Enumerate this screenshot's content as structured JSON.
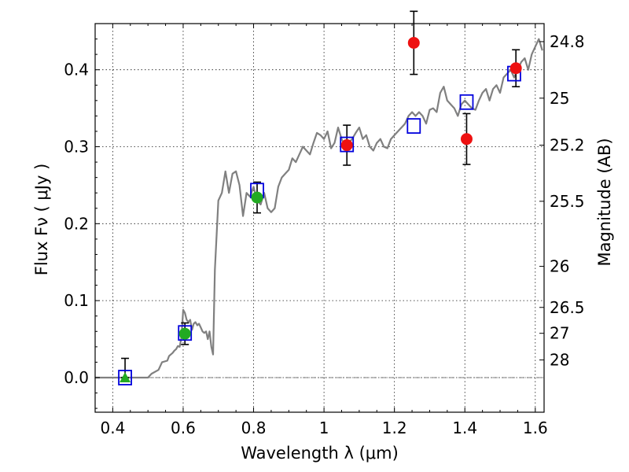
{
  "chart_data": {
    "type": "scatter",
    "xlabel": "Wavelength  λ (μm)",
    "ylabel": "Flux  Fν  ( μJy )",
    "y2label": "Magnitude (AB)",
    "xlim": [
      0.35,
      1.625
    ],
    "ylim": [
      -0.045,
      0.46
    ],
    "x_ticks": [
      0.4,
      0.6,
      0.8,
      1.0,
      1.2,
      1.4,
      1.6
    ],
    "x_tick_labels": [
      "0.4",
      "0.6",
      "0.8",
      "1",
      "1.2",
      "1.4",
      "1.6"
    ],
    "y_ticks": [
      0.0,
      0.1,
      0.2,
      0.3,
      0.4
    ],
    "y_tick_labels": [
      "0.0",
      "0.1",
      "0.2",
      "0.3",
      "0.4"
    ],
    "y2_tick_labels": [
      "24.8",
      "25",
      "25.2",
      "25.5",
      "26",
      "26.5",
      "27",
      "28"
    ],
    "grid": true,
    "zero_line": true,
    "series": [
      {
        "kind": "line",
        "color": "#808080",
        "x": [
          0.35,
          0.45,
          0.5,
          0.51,
          0.53,
          0.54,
          0.555,
          0.56,
          0.565,
          0.57,
          0.575,
          0.58,
          0.585,
          0.59,
          0.595,
          0.6,
          0.605,
          0.61,
          0.615,
          0.62,
          0.625,
          0.63,
          0.635,
          0.64,
          0.645,
          0.65,
          0.655,
          0.66,
          0.665,
          0.67,
          0.675,
          0.68,
          0.685,
          0.69,
          0.7,
          0.71,
          0.72,
          0.73,
          0.74,
          0.75,
          0.76,
          0.77,
          0.78,
          0.79,
          0.8,
          0.81,
          0.82,
          0.83,
          0.84,
          0.85,
          0.86,
          0.87,
          0.88,
          0.89,
          0.9,
          0.91,
          0.92,
          0.93,
          0.94,
          0.95,
          0.96,
          0.97,
          0.98,
          0.99,
          1.0,
          1.01,
          1.02,
          1.03,
          1.04,
          1.05,
          1.06,
          1.07,
          1.08,
          1.09,
          1.1,
          1.11,
          1.12,
          1.13,
          1.14,
          1.15,
          1.16,
          1.17,
          1.18,
          1.19,
          1.2,
          1.21,
          1.22,
          1.23,
          1.24,
          1.25,
          1.26,
          1.27,
          1.28,
          1.29,
          1.3,
          1.31,
          1.32,
          1.33,
          1.34,
          1.35,
          1.36,
          1.37,
          1.38,
          1.39,
          1.4,
          1.41,
          1.42,
          1.43,
          1.44,
          1.45,
          1.46,
          1.47,
          1.48,
          1.49,
          1.5,
          1.51,
          1.52,
          1.53,
          1.54,
          1.55,
          1.56,
          1.57,
          1.58,
          1.59,
          1.6,
          1.61,
          1.62
        ],
        "y": [
          0.0,
          0.0,
          0.0,
          0.005,
          0.01,
          0.02,
          0.022,
          0.028,
          0.03,
          0.032,
          0.035,
          0.037,
          0.041,
          0.04,
          0.052,
          0.088,
          0.084,
          0.075,
          0.072,
          0.075,
          0.062,
          0.07,
          0.072,
          0.068,
          0.07,
          0.065,
          0.06,
          0.058,
          0.06,
          0.05,
          0.06,
          0.04,
          0.03,
          0.14,
          0.23,
          0.24,
          0.268,
          0.24,
          0.265,
          0.268,
          0.25,
          0.21,
          0.24,
          0.235,
          0.248,
          0.23,
          0.225,
          0.24,
          0.22,
          0.215,
          0.22,
          0.248,
          0.26,
          0.265,
          0.27,
          0.285,
          0.28,
          0.29,
          0.3,
          0.295,
          0.29,
          0.305,
          0.318,
          0.315,
          0.31,
          0.32,
          0.298,
          0.305,
          0.325,
          0.31,
          0.3,
          0.305,
          0.31,
          0.318,
          0.325,
          0.31,
          0.315,
          0.3,
          0.295,
          0.305,
          0.31,
          0.3,
          0.298,
          0.31,
          0.315,
          0.32,
          0.325,
          0.33,
          0.34,
          0.345,
          0.34,
          0.345,
          0.34,
          0.33,
          0.348,
          0.35,
          0.345,
          0.37,
          0.378,
          0.36,
          0.355,
          0.35,
          0.34,
          0.355,
          0.36,
          0.355,
          0.35,
          0.348,
          0.36,
          0.37,
          0.375,
          0.36,
          0.375,
          0.38,
          0.37,
          0.39,
          0.395,
          0.4,
          0.39,
          0.4,
          0.41,
          0.415,
          0.4,
          0.42,
          0.43,
          0.44,
          0.425
        ]
      },
      {
        "kind": "open-square",
        "color": "#0000dd",
        "x": [
          0.435,
          0.605,
          0.81,
          1.065,
          1.255,
          1.405,
          1.54
        ],
        "y": [
          0.0,
          0.058,
          0.243,
          0.303,
          0.327,
          0.358,
          0.395
        ]
      },
      {
        "kind": "filled-circle",
        "color": "#ee1111",
        "x": [
          1.065,
          1.255,
          1.405,
          1.545
        ],
        "y": [
          0.302,
          0.435,
          0.31,
          0.402
        ],
        "err_low": [
          0.026,
          0.041,
          0.033,
          0.024
        ],
        "err_high": [
          0.026,
          0.041,
          0.033,
          0.024
        ]
      },
      {
        "kind": "filled-circle",
        "color": "#22aa22",
        "x": [
          0.605,
          0.81
        ],
        "y": [
          0.057,
          0.234
        ],
        "err_low": [
          0.014,
          0.02
        ],
        "err_high": [
          0.014,
          0.02
        ]
      },
      {
        "kind": "filled-triangle",
        "color": "#22aa22",
        "x": [
          0.435
        ],
        "y": [
          0.0
        ],
        "err_low": [
          0.0
        ],
        "err_high": [
          0.025
        ]
      }
    ]
  }
}
